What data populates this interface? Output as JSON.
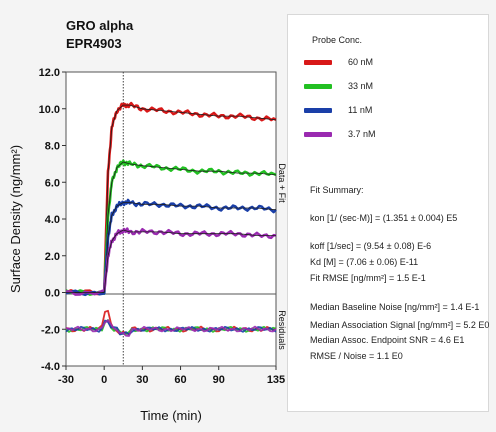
{
  "chart_data": {
    "type": "line",
    "title": "GRO alpha",
    "subtitle": "EPR4903",
    "xlabel": "Time (min)",
    "ylabel": "Surface Density (ng/mm²)",
    "right_label_top": "Data + Fit",
    "right_label_bottom": "Residuals",
    "xlim": [
      -30,
      135
    ],
    "ylim": [
      -4.0,
      12.0
    ],
    "x_ticks": [
      "-30",
      "0",
      "30",
      "60",
      "90",
      "135"
    ],
    "x_tick_values": [
      -30,
      0,
      30,
      60,
      90,
      135
    ],
    "y_ticks": [
      "-4.0",
      "-2.0",
      "0.0",
      "2.0",
      "4.0",
      "6.0",
      "8.0",
      "10.0",
      "12.0"
    ],
    "y_tick_values": [
      -4,
      -2,
      0,
      2,
      4,
      6,
      8,
      10,
      12
    ],
    "injection_end_x": 15,
    "series": [
      {
        "name": "60 nM",
        "color": "#d81818",
        "x": [
          -30,
          0,
          3,
          6,
          10,
          15,
          20,
          30,
          45,
          60,
          75,
          90,
          105,
          120,
          135
        ],
        "y": [
          0.0,
          0.0,
          6.5,
          9.0,
          9.9,
          10.2,
          10.2,
          10.0,
          9.9,
          9.8,
          9.7,
          9.6,
          9.6,
          9.5,
          9.4
        ]
      },
      {
        "name": "33 nM",
        "color": "#22c022",
        "x": [
          -30,
          0,
          3,
          6,
          10,
          15,
          20,
          30,
          45,
          60,
          75,
          90,
          105,
          120,
          135
        ],
        "y": [
          0.0,
          0.0,
          4.2,
          6.0,
          6.8,
          7.1,
          7.0,
          6.9,
          6.8,
          6.7,
          6.6,
          6.6,
          6.5,
          6.5,
          6.4
        ]
      },
      {
        "name": "11 nM",
        "color": "#1a3fa8",
        "x": [
          -30,
          0,
          3,
          6,
          10,
          15,
          20,
          30,
          45,
          60,
          75,
          90,
          105,
          120,
          135
        ],
        "y": [
          0.0,
          0.0,
          3.0,
          4.2,
          4.7,
          4.9,
          4.9,
          4.8,
          4.8,
          4.7,
          4.7,
          4.6,
          4.6,
          4.6,
          4.5
        ]
      },
      {
        "name": "3.7 nM",
        "color": "#9a2ab0",
        "x": [
          -30,
          0,
          3,
          6,
          10,
          15,
          20,
          30,
          45,
          60,
          75,
          90,
          105,
          120,
          135
        ],
        "y": [
          0.0,
          0.0,
          2.0,
          2.8,
          3.2,
          3.4,
          3.3,
          3.3,
          3.3,
          3.2,
          3.2,
          3.2,
          3.2,
          3.1,
          3.1
        ]
      }
    ],
    "residual_baseline": -2.0,
    "legend_title": "Probe Conc.",
    "legend": [
      "60 nM",
      "33 nM",
      "11 nM",
      "3.7 nM"
    ]
  },
  "fit_summary": {
    "title": "Fit Summary:",
    "lines": [
      "kon  [1/ (sec·M)]  =  (1.351 ± 0.004) E5",
      "koff  [1/sec]  =  (9.54 ± 0.08) E-6",
      "Kd  [M]  =  (7.06 ± 0.06) E-11",
      "Fit RMSE [ng/mm²]  =  1.5 E-1",
      "Median Baseline Noise [ng/mm²]  =  1.4 E-1",
      "Median Association Signal [ng/mm²]  =  5.2 E0",
      "Median Assoc. Endpoint SNR  =  4.6 E1",
      "RMSE / Noise  =  1.1 E0"
    ]
  }
}
